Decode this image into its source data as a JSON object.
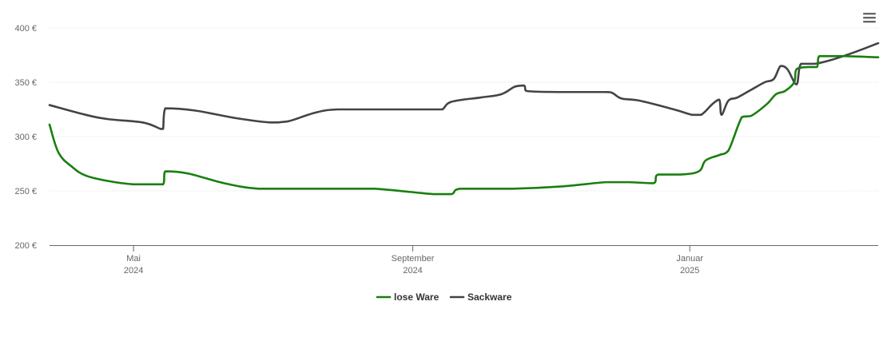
{
  "menu_icon": "hamburger-menu-icon",
  "chart_data": {
    "type": "line",
    "title": "",
    "xlabel": "",
    "ylabel": "",
    "xlim": [
      "2024-03-25",
      "2025-03-25"
    ],
    "ylim": [
      200,
      400
    ],
    "y_ticks": [
      "200 €",
      "250 €",
      "300 €",
      "350 €",
      "400 €"
    ],
    "y_tick_values": [
      200,
      250,
      300,
      350,
      400
    ],
    "x_ticks": [
      {
        "date": "2024-05-01",
        "month": "Mai",
        "year": "2024"
      },
      {
        "date": "2024-09-01",
        "month": "September",
        "year": "2024"
      },
      {
        "date": "2025-01-01",
        "month": "Januar",
        "year": "2025"
      }
    ],
    "grid": true,
    "legend_position": "bottom-center",
    "series": [
      {
        "name": "lose Ware",
        "color": "#1a7f0f",
        "points": [
          [
            "2024-03-25",
            311
          ],
          [
            "2024-03-29",
            285
          ],
          [
            "2024-04-04",
            272
          ],
          [
            "2024-04-10",
            264
          ],
          [
            "2024-04-20",
            259
          ],
          [
            "2024-05-01",
            256
          ],
          [
            "2024-05-14",
            256
          ],
          [
            "2024-05-15",
            268
          ],
          [
            "2024-05-25",
            266
          ],
          [
            "2024-06-10",
            257
          ],
          [
            "2024-06-25",
            252
          ],
          [
            "2024-07-15",
            252
          ],
          [
            "2024-08-01",
            252
          ],
          [
            "2024-08-15",
            252
          ],
          [
            "2024-08-31",
            249
          ],
          [
            "2024-09-10",
            247
          ],
          [
            "2024-09-18",
            247
          ],
          [
            "2024-09-22",
            252
          ],
          [
            "2024-10-15",
            252
          ],
          [
            "2024-11-05",
            254
          ],
          [
            "2024-11-25",
            258
          ],
          [
            "2024-12-05",
            258
          ],
          [
            "2024-12-16",
            257
          ],
          [
            "2024-12-18",
            265
          ],
          [
            "2024-12-28",
            265
          ],
          [
            "2025-01-05",
            268
          ],
          [
            "2025-01-08",
            278
          ],
          [
            "2025-01-14",
            283
          ],
          [
            "2025-01-18",
            287
          ],
          [
            "2025-01-24",
            318
          ],
          [
            "2025-01-28",
            319
          ],
          [
            "2025-02-04",
            330
          ],
          [
            "2025-02-08",
            339
          ],
          [
            "2025-02-12",
            342
          ],
          [
            "2025-02-16",
            350
          ],
          [
            "2025-02-17",
            362
          ],
          [
            "2025-02-22",
            364
          ],
          [
            "2025-02-26",
            364
          ],
          [
            "2025-02-27",
            374
          ],
          [
            "2025-03-10",
            374
          ],
          [
            "2025-03-25",
            373
          ]
        ]
      },
      {
        "name": "Sackware",
        "color": "#434348",
        "points": [
          [
            "2024-03-25",
            329
          ],
          [
            "2024-04-10",
            320
          ],
          [
            "2024-04-20",
            316
          ],
          [
            "2024-05-05",
            313
          ],
          [
            "2024-05-13",
            307
          ],
          [
            "2024-05-14",
            307
          ],
          [
            "2024-05-15",
            326
          ],
          [
            "2024-05-28",
            324
          ],
          [
            "2024-06-15",
            317
          ],
          [
            "2024-06-30",
            313
          ],
          [
            "2024-07-08",
            314
          ],
          [
            "2024-07-20",
            322
          ],
          [
            "2024-07-30",
            325
          ],
          [
            "2024-08-20",
            325
          ],
          [
            "2024-09-10",
            325
          ],
          [
            "2024-09-14",
            325
          ],
          [
            "2024-09-18",
            332
          ],
          [
            "2024-10-01",
            336
          ],
          [
            "2024-10-10",
            339
          ],
          [
            "2024-10-16",
            346
          ],
          [
            "2024-10-20",
            347
          ],
          [
            "2024-10-21",
            342
          ],
          [
            "2024-11-05",
            341
          ],
          [
            "2024-11-25",
            341
          ],
          [
            "2024-11-28",
            340
          ],
          [
            "2024-12-02",
            335
          ],
          [
            "2024-12-10",
            333
          ],
          [
            "2024-12-25",
            325
          ],
          [
            "2025-01-02",
            320
          ],
          [
            "2025-01-06",
            320
          ],
          [
            "2025-01-11",
            330
          ],
          [
            "2025-01-14",
            334
          ],
          [
            "2025-01-15",
            320
          ],
          [
            "2025-01-18",
            333
          ],
          [
            "2025-01-22",
            336
          ],
          [
            "2025-01-28",
            343
          ],
          [
            "2025-02-03",
            350
          ],
          [
            "2025-02-07",
            353
          ],
          [
            "2025-02-10",
            365
          ],
          [
            "2025-02-13",
            362
          ],
          [
            "2025-02-17",
            348
          ],
          [
            "2025-02-19",
            367
          ],
          [
            "2025-02-25",
            367
          ],
          [
            "2025-03-05",
            371
          ],
          [
            "2025-03-15",
            378
          ],
          [
            "2025-03-25",
            386
          ]
        ]
      }
    ]
  }
}
